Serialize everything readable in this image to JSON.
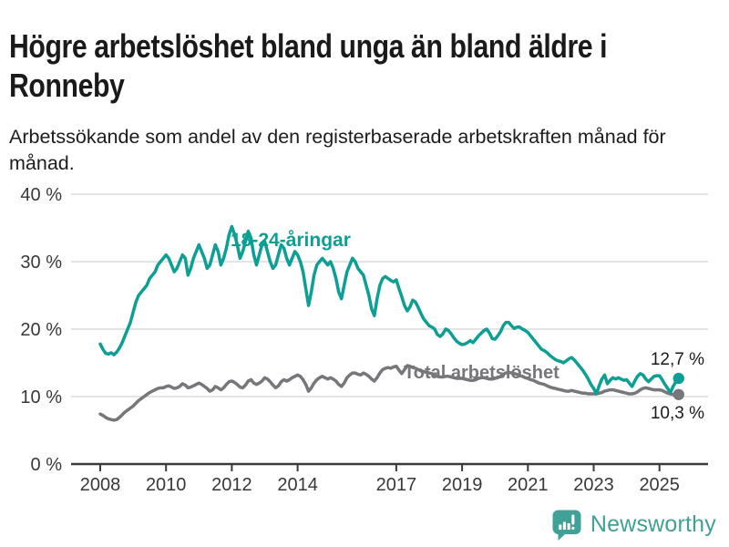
{
  "header": {
    "title": "Högre arbetslöshet bland unga än bland äldre i Ronneby",
    "subtitle": "Arbetssökande som andel av den registerbaserade arbetskraften månad för månad."
  },
  "chart_data": {
    "type": "line",
    "title": "Högre arbetslöshet bland unga än bland äldre i Ronneby",
    "subtitle": "Arbetssökande som andel av den registerbaserade arbetskraften månad för månad.",
    "unit": "%",
    "frequency": "monthly",
    "x_range": [
      "2008-01",
      "2025-08"
    ],
    "x_tick_years": [
      2008,
      2010,
      2012,
      2014,
      2017,
      2019,
      2021,
      2023,
      2025
    ],
    "y_ticks": [
      0,
      10,
      20,
      30,
      40
    ],
    "y_tick_labels": [
      "0 %",
      "10 %",
      "20 %",
      "30 %",
      "40 %"
    ],
    "ylim": [
      0,
      42
    ],
    "grid": "horizontal",
    "colors": {
      "young": "#0d9f94",
      "total": "#76767b",
      "grid": "#e4e4e4",
      "axis": "#3a3a3a",
      "tick_text": "#38383a",
      "value_text": "#1a1a1a"
    },
    "series": [
      {
        "name": "18-24-åringar",
        "color": "#0d9f94",
        "end_value": 12.7,
        "end_label": "12,7 %",
        "values": [
          17.8,
          17.0,
          16.4,
          16.3,
          16.5,
          16.2,
          16.6,
          17.2,
          18.0,
          19.0,
          20.0,
          21.0,
          22.5,
          24.0,
          25.0,
          25.5,
          26.0,
          26.5,
          27.5,
          28.0,
          28.5,
          29.5,
          30.0,
          30.5,
          31.0,
          30.5,
          29.5,
          28.5,
          29.0,
          30.0,
          31.0,
          30.5,
          28.0,
          29.0,
          30.5,
          31.5,
          32.5,
          31.5,
          30.5,
          29.0,
          29.5,
          31.0,
          32.5,
          31.5,
          29.5,
          30.5,
          32.0,
          34.0,
          35.2,
          34.0,
          32.5,
          30.5,
          31.5,
          33.0,
          34.5,
          33.5,
          31.0,
          29.5,
          31.0,
          32.5,
          33.0,
          31.5,
          30.0,
          29.0,
          29.5,
          31.0,
          32.5,
          32.0,
          30.5,
          29.5,
          30.5,
          31.5,
          31.0,
          30.0,
          28.5,
          26.0,
          23.5,
          25.5,
          28.0,
          29.5,
          30.0,
          30.5,
          30.0,
          29.5,
          30.0,
          29.0,
          27.5,
          25.5,
          24.5,
          26.5,
          28.5,
          29.5,
          30.5,
          30.0,
          29.0,
          28.5,
          28.0,
          26.5,
          25.0,
          23.0,
          22.0,
          24.5,
          26.5,
          27.5,
          27.8,
          27.5,
          27.2,
          27.0,
          27.3,
          26.0,
          24.8,
          23.5,
          22.7,
          23.3,
          24.3,
          24.0,
          23.2,
          22.3,
          21.5,
          21.0,
          20.5,
          20.3,
          20.0,
          19.2,
          18.9,
          19.3,
          20.0,
          19.8,
          19.3,
          18.7,
          18.2,
          17.9,
          17.7,
          17.8,
          18.0,
          18.3,
          18.0,
          18.5,
          19.0,
          19.4,
          19.8,
          20.0,
          19.4,
          18.6,
          18.5,
          19.0,
          19.6,
          20.5,
          21.0,
          21.0,
          20.5,
          20.1,
          20.3,
          20.3,
          20.0,
          19.8,
          19.5,
          19.0,
          18.5,
          18.0,
          17.5,
          17.0,
          16.8,
          16.5,
          16.1,
          15.8,
          15.5,
          15.3,
          15.2,
          15.0,
          15.3,
          15.6,
          15.8,
          15.4,
          14.9,
          14.4,
          13.9,
          13.3,
          12.6,
          11.8,
          11.2,
          10.4,
          11.6,
          12.6,
          13.2,
          11.9,
          12.4,
          12.8,
          12.6,
          12.8,
          12.6,
          12.4,
          12.5,
          12.0,
          11.5,
          12.3,
          13.0,
          13.4,
          13.2,
          12.6,
          12.2,
          12.6,
          13.0,
          13.1,
          13.1,
          12.5,
          11.8,
          11.2,
          10.6,
          11.5,
          12.2,
          12.7
        ]
      },
      {
        "name": "Total arbetslöshet",
        "color": "#76767b",
        "end_value": 10.3,
        "end_label": "10,3 %",
        "values": [
          7.4,
          7.2,
          6.9,
          6.7,
          6.6,
          6.5,
          6.6,
          6.9,
          7.3,
          7.7,
          8.0,
          8.3,
          8.6,
          9.0,
          9.4,
          9.7,
          10.0,
          10.3,
          10.6,
          10.8,
          11.0,
          11.2,
          11.3,
          11.3,
          11.5,
          11.6,
          11.4,
          11.2,
          11.3,
          11.5,
          11.9,
          11.7,
          11.3,
          11.4,
          11.6,
          11.8,
          12.0,
          11.8,
          11.5,
          11.2,
          10.8,
          11.0,
          11.5,
          11.3,
          11.0,
          11.3,
          11.8,
          12.2,
          12.3,
          12.1,
          11.8,
          11.4,
          11.3,
          11.7,
          12.3,
          12.5,
          12.0,
          11.8,
          12.0,
          12.3,
          12.8,
          12.6,
          12.2,
          11.7,
          11.3,
          11.6,
          12.2,
          12.5,
          12.3,
          12.5,
          12.8,
          13.0,
          13.2,
          13.0,
          12.5,
          11.8,
          10.8,
          11.3,
          12.0,
          12.5,
          12.8,
          13.0,
          12.8,
          12.6,
          12.8,
          12.6,
          12.3,
          11.8,
          11.5,
          12.0,
          12.8,
          13.2,
          13.5,
          13.5,
          13.3,
          13.2,
          13.5,
          13.3,
          13.0,
          12.6,
          12.3,
          12.8,
          13.5,
          14.0,
          14.2,
          14.3,
          14.2,
          14.4,
          14.5,
          13.9,
          13.4,
          14.0,
          14.6,
          14.5,
          14.3,
          14.2,
          14.0,
          13.8,
          13.7,
          13.6,
          13.5,
          13.4,
          13.2,
          13.0,
          12.9,
          12.9,
          13.0,
          13.0,
          12.9,
          12.8,
          12.7,
          12.7,
          12.7,
          12.6,
          12.5,
          12.4,
          12.4,
          12.5,
          12.7,
          12.8,
          12.8,
          12.7,
          12.6,
          12.6,
          12.7,
          12.8,
          13.0,
          13.3,
          13.5,
          13.6,
          13.5,
          13.4,
          13.3,
          13.1,
          13.0,
          12.8,
          12.7,
          12.5,
          12.4,
          12.2,
          12.0,
          11.9,
          11.8,
          11.6,
          11.4,
          11.3,
          11.2,
          11.1,
          11.0,
          10.9,
          10.8,
          10.8,
          10.9,
          10.8,
          10.7,
          10.6,
          10.5,
          10.5,
          10.4,
          10.4,
          10.4,
          10.4,
          10.5,
          10.6,
          10.8,
          10.9,
          11.0,
          11.0,
          10.9,
          10.8,
          10.7,
          10.6,
          10.5,
          10.4,
          10.4,
          10.5,
          10.7,
          11.0,
          11.2,
          11.3,
          11.2,
          11.1,
          11.0,
          11.0,
          11.0,
          10.9,
          10.7,
          10.5,
          10.4,
          10.3,
          10.3,
          10.3
        ]
      }
    ]
  },
  "footer": {
    "brand": "Newsworthy",
    "brand_color": "#3fa197"
  }
}
